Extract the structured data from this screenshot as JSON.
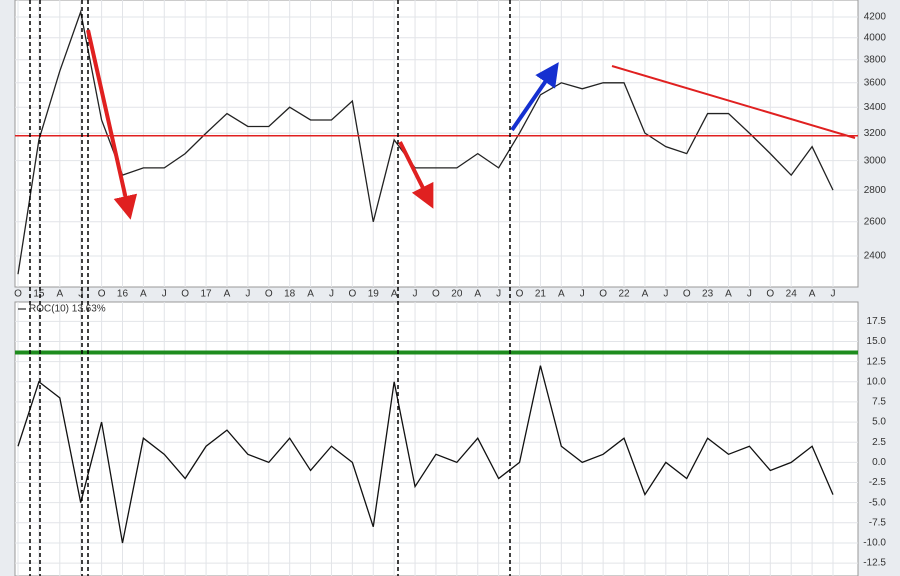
{
  "chart_data": [
    {
      "type": "line",
      "log_scale": true,
      "grid": true,
      "categories": [
        "O",
        "15",
        "A",
        "J",
        "O",
        "16",
        "A",
        "J",
        "O",
        "17",
        "A",
        "J",
        "O",
        "18",
        "A",
        "J",
        "O",
        "19",
        "A",
        "J",
        "O",
        "20",
        "A",
        "J",
        "O",
        "21",
        "A",
        "J",
        "O",
        "22",
        "A",
        "J",
        "O",
        "23",
        "A",
        "J",
        "O",
        "24",
        "A",
        "J"
      ],
      "series": [
        {
          "color": "#222222",
          "values": [
            2300,
            3150,
            3700,
            4250,
            3300,
            2900,
            2950,
            2950,
            3050,
            3200,
            3350,
            3250,
            3250,
            3400,
            3300,
            3300,
            3450,
            2600,
            3150,
            2950,
            2950,
            2950,
            3050,
            2950,
            3200,
            3500,
            3600,
            3550,
            3600,
            3600,
            3200,
            3100,
            3050,
            3350,
            3350,
            3200,
            3050,
            2900,
            3100,
            2800
          ]
        }
      ],
      "hlines": [
        {
          "value": 3180,
          "color": "#2a9a2a"
        },
        {
          "value": 3180,
          "color": "#e02020"
        }
      ],
      "ylim": [
        2232,
        4370
      ],
      "yticks": [
        2400,
        2600,
        2800,
        3000,
        3200,
        3400,
        3600,
        3800,
        4000,
        4200
      ]
    },
    {
      "type": "line",
      "grid": true,
      "series": [
        {
          "name": "ROC(10) 13.63%",
          "color": "#111111",
          "values": [
            2,
            10,
            8,
            -5,
            5,
            -10,
            3,
            1,
            -2,
            2,
            4,
            1,
            0,
            3,
            -1,
            2,
            0,
            -8,
            10,
            -3,
            1,
            0,
            3,
            -2,
            0,
            12,
            2,
            0,
            1,
            3,
            -4,
            0,
            -2,
            3,
            1,
            2,
            -1,
            0,
            2,
            -4
          ]
        }
      ],
      "hlines": [
        {
          "value": 13.63,
          "color": "#1e8c1e"
        }
      ],
      "ylim": [
        -14.1,
        19.9
      ],
      "yticks": [
        -12.5,
        {
          "value": -10,
          "label": "-10.0"
        },
        -7.5,
        {
          "value": -5,
          "label": "-5.0"
        },
        -2.5,
        {
          "value": 0,
          "label": "0.0"
        },
        2.5,
        {
          "value": 5,
          "label": "5.0"
        },
        7.5,
        {
          "value": 10,
          "label": "10.0"
        },
        12.5,
        {
          "value": 15,
          "label": "15.0"
        },
        17.5
      ]
    }
  ]
}
